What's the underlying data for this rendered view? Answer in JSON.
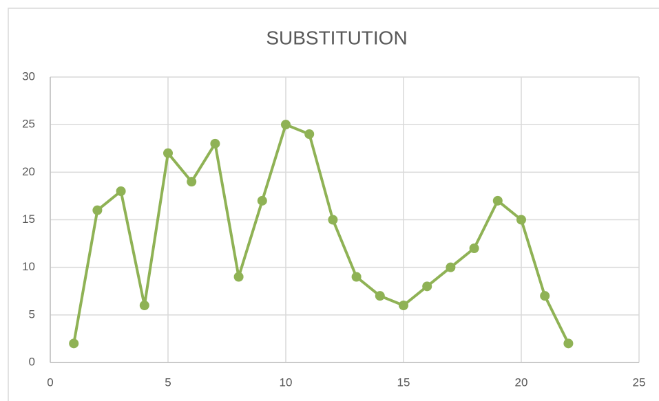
{
  "chart_data": {
    "type": "line",
    "title": "SUBSTITUTION",
    "x": [
      1,
      2,
      3,
      4,
      5,
      6,
      7,
      8,
      9,
      10,
      11,
      12,
      13,
      14,
      15,
      16,
      17,
      18,
      19,
      20,
      21,
      22
    ],
    "values": [
      2,
      16,
      18,
      6,
      22,
      19,
      23,
      9,
      17,
      25,
      24,
      15,
      9,
      7,
      6,
      8,
      10,
      12,
      17,
      15,
      7,
      2
    ],
    "color": "#8fb255",
    "xlim": [
      0,
      25
    ],
    "xticks": [
      0,
      5,
      10,
      15,
      20,
      25
    ],
    "ylim": [
      0,
      30
    ],
    "yticks": [
      0,
      5,
      10,
      15,
      20,
      25,
      30
    ],
    "grid": true,
    "markers": true
  }
}
